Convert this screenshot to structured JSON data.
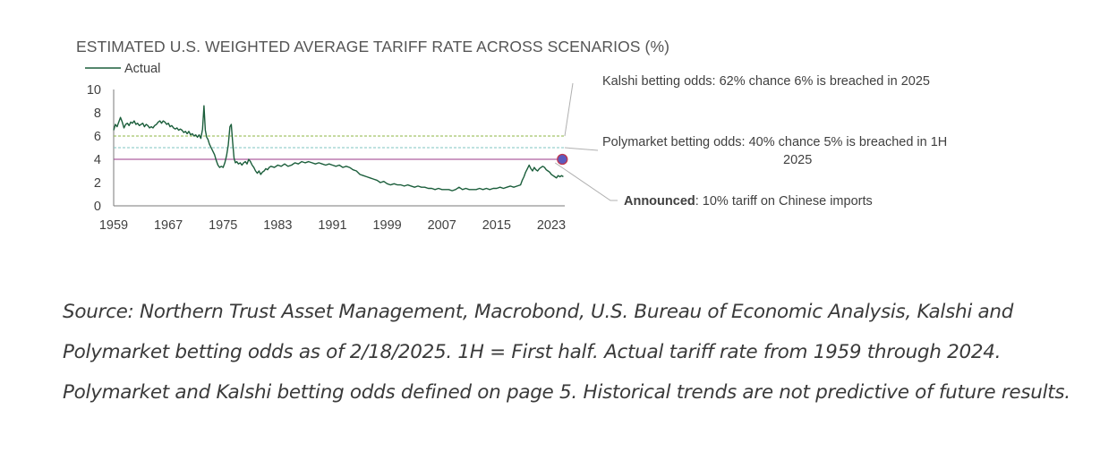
{
  "chart_data": {
    "type": "line",
    "title": "ESTIMATED U.S. WEIGHTED AVERAGE TARIFF RATE ACROSS SCENARIOS (%)",
    "xlabel": "",
    "ylabel": "",
    "xlim": [
      1959,
      2025
    ],
    "ylim": [
      0,
      10
    ],
    "x_ticks": [
      "1959",
      "1967",
      "1975",
      "1983",
      "1991",
      "1999",
      "2007",
      "2015",
      "2023"
    ],
    "y_ticks": [
      "0",
      "2",
      "4",
      "6",
      "8",
      "10"
    ],
    "grid": false,
    "legend": "top-left",
    "series": [
      {
        "name": "Actual",
        "color": "#1b5e3b",
        "points": [
          [
            1959.0,
            6.5
          ],
          [
            1959.25,
            7.0
          ],
          [
            1959.5,
            6.8
          ],
          [
            1959.75,
            7.2
          ],
          [
            1960.0,
            7.6
          ],
          [
            1960.25,
            7.2
          ],
          [
            1960.5,
            6.7
          ],
          [
            1960.75,
            7.0
          ],
          [
            1961.0,
            7.1
          ],
          [
            1961.25,
            6.9
          ],
          [
            1961.5,
            7.2
          ],
          [
            1961.75,
            7.1
          ],
          [
            1962.0,
            7.3
          ],
          [
            1962.25,
            7.0
          ],
          [
            1962.5,
            7.1
          ],
          [
            1962.75,
            6.9
          ],
          [
            1963.0,
            7.0
          ],
          [
            1963.25,
            7.1
          ],
          [
            1963.5,
            6.8
          ],
          [
            1963.75,
            7.0
          ],
          [
            1964.0,
            6.9
          ],
          [
            1964.25,
            6.7
          ],
          [
            1964.5,
            6.8
          ],
          [
            1964.75,
            6.7
          ],
          [
            1965.0,
            6.9
          ],
          [
            1965.25,
            7.0
          ],
          [
            1965.5,
            7.2
          ],
          [
            1965.75,
            7.3
          ],
          [
            1966.0,
            7.1
          ],
          [
            1966.25,
            7.3
          ],
          [
            1966.5,
            7.2
          ],
          [
            1966.75,
            7.0
          ],
          [
            1967.0,
            7.1
          ],
          [
            1967.25,
            6.8
          ],
          [
            1967.5,
            6.9
          ],
          [
            1967.75,
            6.7
          ],
          [
            1968.0,
            6.6
          ],
          [
            1968.25,
            6.7
          ],
          [
            1968.5,
            6.5
          ],
          [
            1968.75,
            6.6
          ],
          [
            1969.0,
            6.5
          ],
          [
            1969.25,
            6.3
          ],
          [
            1969.5,
            6.4
          ],
          [
            1969.75,
            6.2
          ],
          [
            1970.0,
            6.4
          ],
          [
            1970.25,
            6.1
          ],
          [
            1970.5,
            6.2
          ],
          [
            1970.75,
            6.0
          ],
          [
            1971.0,
            6.1
          ],
          [
            1971.25,
            5.9
          ],
          [
            1971.5,
            6.1
          ],
          [
            1971.75,
            5.8
          ],
          [
            1972.0,
            6.6
          ],
          [
            1972.2,
            8.6
          ],
          [
            1972.4,
            6.5
          ],
          [
            1972.6,
            5.9
          ],
          [
            1972.8,
            5.7
          ],
          [
            1973.0,
            5.3
          ],
          [
            1973.25,
            5.0
          ],
          [
            1973.5,
            4.7
          ],
          [
            1973.75,
            4.4
          ],
          [
            1974.0,
            3.9
          ],
          [
            1974.25,
            3.5
          ],
          [
            1974.5,
            3.3
          ],
          [
            1974.75,
            3.4
          ],
          [
            1975.0,
            3.3
          ],
          [
            1975.25,
            3.7
          ],
          [
            1975.5,
            4.3
          ],
          [
            1975.75,
            5.2
          ],
          [
            1976.0,
            6.8
          ],
          [
            1976.2,
            7.0
          ],
          [
            1976.4,
            5.5
          ],
          [
            1976.6,
            4.1
          ],
          [
            1976.8,
            3.7
          ],
          [
            1977.0,
            3.8
          ],
          [
            1977.25,
            3.6
          ],
          [
            1977.5,
            3.7
          ],
          [
            1977.75,
            3.5
          ],
          [
            1978.0,
            3.7
          ],
          [
            1978.25,
            3.8
          ],
          [
            1978.5,
            3.6
          ],
          [
            1978.75,
            4.0
          ],
          [
            1979.0,
            3.8
          ],
          [
            1979.25,
            3.5
          ],
          [
            1979.5,
            3.3
          ],
          [
            1979.75,
            3.0
          ],
          [
            1980.0,
            2.8
          ],
          [
            1980.25,
            3.0
          ],
          [
            1980.5,
            2.7
          ],
          [
            1980.75,
            2.9
          ],
          [
            1981.0,
            3.0
          ],
          [
            1981.25,
            3.2
          ],
          [
            1981.5,
            3.1
          ],
          [
            1981.75,
            3.3
          ],
          [
            1982.0,
            3.4
          ],
          [
            1982.5,
            3.3
          ],
          [
            1983.0,
            3.5
          ],
          [
            1983.5,
            3.4
          ],
          [
            1984.0,
            3.6
          ],
          [
            1984.5,
            3.4
          ],
          [
            1985.0,
            3.5
          ],
          [
            1985.5,
            3.7
          ],
          [
            1986.0,
            3.6
          ],
          [
            1986.5,
            3.8
          ],
          [
            1987.0,
            3.7
          ],
          [
            1987.5,
            3.8
          ],
          [
            1988.0,
            3.7
          ],
          [
            1988.5,
            3.6
          ],
          [
            1989.0,
            3.7
          ],
          [
            1989.5,
            3.6
          ],
          [
            1990.0,
            3.5
          ],
          [
            1990.5,
            3.6
          ],
          [
            1991.0,
            3.5
          ],
          [
            1991.5,
            3.4
          ],
          [
            1992.0,
            3.5
          ],
          [
            1992.5,
            3.3
          ],
          [
            1993.0,
            3.4
          ],
          [
            1993.5,
            3.3
          ],
          [
            1994.0,
            3.1
          ],
          [
            1994.5,
            3.0
          ],
          [
            1995.0,
            2.7
          ],
          [
            1995.5,
            2.6
          ],
          [
            1996.0,
            2.5
          ],
          [
            1996.5,
            2.4
          ],
          [
            1997.0,
            2.3
          ],
          [
            1997.5,
            2.2
          ],
          [
            1998.0,
            2.0
          ],
          [
            1998.5,
            2.1
          ],
          [
            1999.0,
            1.9
          ],
          [
            1999.5,
            1.8
          ],
          [
            2000.0,
            1.9
          ],
          [
            2000.5,
            1.8
          ],
          [
            2001.0,
            1.8
          ],
          [
            2001.5,
            1.7
          ],
          [
            2002.0,
            1.8
          ],
          [
            2002.5,
            1.7
          ],
          [
            2003.0,
            1.6
          ],
          [
            2003.5,
            1.7
          ],
          [
            2004.0,
            1.6
          ],
          [
            2004.5,
            1.6
          ],
          [
            2005.0,
            1.5
          ],
          [
            2005.5,
            1.5
          ],
          [
            2006.0,
            1.4
          ],
          [
            2006.5,
            1.5
          ],
          [
            2007.0,
            1.4
          ],
          [
            2007.5,
            1.4
          ],
          [
            2008.0,
            1.4
          ],
          [
            2008.5,
            1.3
          ],
          [
            2009.0,
            1.4
          ],
          [
            2009.5,
            1.6
          ],
          [
            2010.0,
            1.4
          ],
          [
            2010.5,
            1.5
          ],
          [
            2011.0,
            1.4
          ],
          [
            2011.5,
            1.4
          ],
          [
            2012.0,
            1.4
          ],
          [
            2012.5,
            1.5
          ],
          [
            2013.0,
            1.4
          ],
          [
            2013.5,
            1.5
          ],
          [
            2014.0,
            1.4
          ],
          [
            2014.5,
            1.5
          ],
          [
            2015.0,
            1.5
          ],
          [
            2015.5,
            1.6
          ],
          [
            2016.0,
            1.5
          ],
          [
            2016.5,
            1.6
          ],
          [
            2017.0,
            1.7
          ],
          [
            2017.5,
            1.6
          ],
          [
            2018.0,
            1.7
          ],
          [
            2018.5,
            1.8
          ],
          [
            2018.75,
            2.2
          ],
          [
            2019.0,
            2.5
          ],
          [
            2019.25,
            2.9
          ],
          [
            2019.5,
            3.2
          ],
          [
            2019.75,
            3.5
          ],
          [
            2020.0,
            3.2
          ],
          [
            2020.25,
            3.0
          ],
          [
            2020.5,
            3.3
          ],
          [
            2020.75,
            3.1
          ],
          [
            2021.0,
            3.0
          ],
          [
            2021.25,
            3.2
          ],
          [
            2021.5,
            3.3
          ],
          [
            2021.75,
            3.4
          ],
          [
            2022.0,
            3.3
          ],
          [
            2022.25,
            3.1
          ],
          [
            2022.5,
            3.0
          ],
          [
            2022.75,
            2.9
          ],
          [
            2023.0,
            2.7
          ],
          [
            2023.25,
            2.6
          ],
          [
            2023.5,
            2.5
          ],
          [
            2023.75,
            2.4
          ],
          [
            2024.0,
            2.6
          ],
          [
            2024.25,
            2.5
          ],
          [
            2024.5,
            2.6
          ],
          [
            2024.75,
            2.5
          ]
        ]
      }
    ],
    "reference_lines": [
      {
        "label": "Kalshi betting odds: 62% chance 6% is breached in 2025",
        "y": 6,
        "color": "#8db543",
        "style": "dashed"
      },
      {
        "label": "Polymarket betting odds: 40% chance 5% is breached in 1H 2025",
        "y": 5,
        "color": "#7fc4c0",
        "style": "dashed"
      },
      {
        "label": "Announced: 10% tariff on Chinese imports",
        "y": 4,
        "color": "#9b3a8a",
        "style": "solid"
      }
    ],
    "highlight_point": {
      "x": 2025,
      "y": 4,
      "fill": "#5b5bbf",
      "stroke": "#c0364d"
    }
  },
  "annotations": {
    "kalshi": "Kalshi betting odds: 62% chance 6% is breached in 2025",
    "poly_line1": "Polymarket betting odds: 40% chance 5% is breached in 1H",
    "poly_line2": "2025",
    "announced_bold": "Announced",
    "announced_rest": ": 10% tariff on Chinese imports"
  },
  "source_note": "Source: Northern Trust Asset Management, Macrobond, U.S. Bureau of Economic Analysis, Kalshi and Polymarket betting odds as of 2/18/2025. 1H = First half. Actual tariff rate from 1959 through 2024. Polymarket and Kalshi betting odds defined on page 5. Historical trends are not predictive of future results."
}
